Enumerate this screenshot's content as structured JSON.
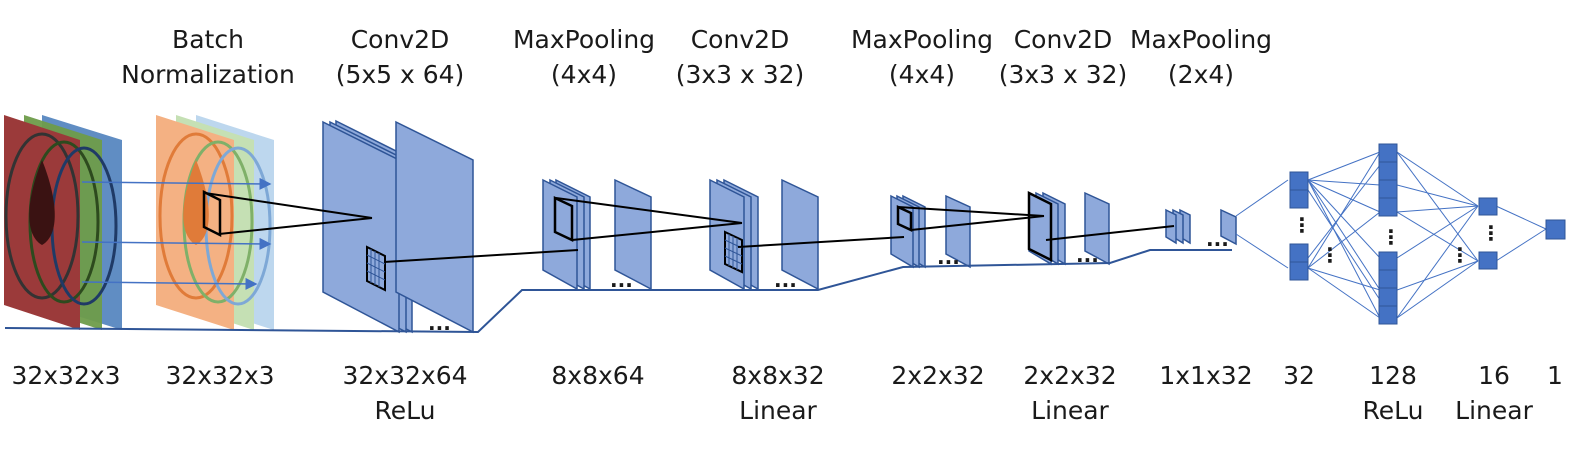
{
  "layers": [
    {
      "id": "input",
      "title": [
        "",
        ""
      ],
      "shape": "32x32x3",
      "activation": ""
    },
    {
      "id": "batchnorm",
      "title": [
        "Batch",
        "Normalization"
      ],
      "shape": "32x32x3",
      "activation": ""
    },
    {
      "id": "conv1",
      "title": [
        "Conv2D",
        "(5x5 x 64)"
      ],
      "shape": "32x32x64",
      "activation": "ReLu"
    },
    {
      "id": "pool1",
      "title": [
        "MaxPooling",
        "(4x4)"
      ],
      "shape": "8x8x64",
      "activation": ""
    },
    {
      "id": "conv2",
      "title": [
        "Conv2D",
        "(3x3 x 32)"
      ],
      "shape": "8x8x32",
      "activation": "Linear"
    },
    {
      "id": "pool2",
      "title": [
        "MaxPooling",
        "(4x4)"
      ],
      "shape": "2x2x32",
      "activation": ""
    },
    {
      "id": "conv3",
      "title": [
        "Conv2D",
        "(3x3 x 32)"
      ],
      "shape": "2x2x32",
      "activation": "Linear"
    },
    {
      "id": "pool3",
      "title": [
        "MaxPooling",
        "(2x4)"
      ],
      "shape": "1x1x32",
      "activation": ""
    },
    {
      "id": "dense32",
      "title": [
        "",
        ""
      ],
      "shape": "32",
      "activation": ""
    },
    {
      "id": "dense128",
      "title": [
        "",
        ""
      ],
      "shape": "128",
      "activation": "ReLu"
    },
    {
      "id": "dense16",
      "title": [
        "",
        ""
      ],
      "shape": "16",
      "activation": "Linear"
    },
    {
      "id": "output",
      "title": [
        "",
        ""
      ],
      "shape": "1",
      "activation": ""
    }
  ],
  "ellipsis": "...",
  "vertical_ellipsis": "⋮",
  "colors": {
    "fill": "#8EA9DB",
    "stroke": "#2F5597",
    "node": "#4472C4",
    "red": "#C0504D",
    "green": "#9BBB59",
    "blue": "#4F81BD",
    "orange": "#F4B183",
    "lightgreen": "#C5E0B4",
    "lightblue": "#BDD7EE"
  }
}
